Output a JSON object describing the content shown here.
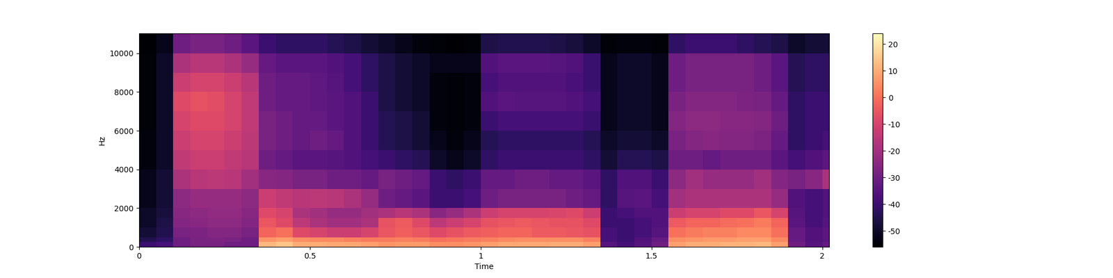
{
  "chart_data": {
    "type": "heatmap",
    "x_label": "Time",
    "y_label": "Hz",
    "color": "magma",
    "x_edges": [
      0,
      0.05,
      0.1,
      0.15,
      0.2,
      0.25,
      0.3,
      0.35,
      0.4,
      0.45,
      0.5,
      0.55,
      0.6,
      0.65,
      0.7,
      0.75,
      0.8,
      0.85,
      0.9,
      0.95,
      1.0,
      1.05,
      1.1,
      1.15,
      1.2,
      1.25,
      1.3,
      1.35,
      1.4,
      1.45,
      1.5,
      1.55,
      1.6,
      1.65,
      1.7,
      1.75,
      1.8,
      1.85,
      1.9,
      1.95,
      2.0,
      2.02
    ],
    "y_edges": [
      0,
      250,
      500,
      1000,
      1500,
      2000,
      3000,
      4000,
      5000,
      6000,
      7000,
      8000,
      9000,
      10000,
      11025
    ],
    "cells": [
      [
        -40,
        -38,
        -30,
        -28,
        -28,
        -30,
        -30,
        12,
        14,
        10,
        10,
        9,
        9,
        8,
        6,
        7,
        7,
        5,
        5,
        6,
        8,
        9,
        9,
        9,
        10,
        10,
        8,
        -35,
        -38,
        -35,
        -30,
        8,
        10,
        10,
        11,
        11,
        12,
        8,
        -30,
        -35,
        -32
      ],
      [
        -45,
        -42,
        -30,
        -28,
        -27,
        -28,
        -30,
        6,
        8,
        5,
        4,
        4,
        3,
        2,
        2,
        3,
        2,
        0,
        1,
        2,
        3,
        4,
        5,
        5,
        5,
        5,
        3,
        -38,
        -40,
        -36,
        -32,
        5,
        6,
        7,
        7,
        8,
        8,
        4,
        -32,
        -36,
        -34
      ],
      [
        -48,
        -45,
        -28,
        -27,
        -26,
        -26,
        -28,
        -2,
        0,
        -8,
        -10,
        -12,
        -12,
        -10,
        -5,
        -3,
        -5,
        -8,
        -6,
        -4,
        -3,
        -2,
        -2,
        -4,
        -4,
        -5,
        -6,
        -38,
        -40,
        -38,
        -35,
        0,
        2,
        3,
        3,
        4,
        4,
        0,
        -32,
        -36,
        -34
      ],
      [
        -50,
        -46,
        -26,
        -25,
        -24,
        -24,
        -26,
        -5,
        -8,
        -15,
        -18,
        -20,
        -20,
        -18,
        -6,
        -4,
        -8,
        -15,
        -12,
        -10,
        -6,
        -5,
        -4,
        -5,
        -6,
        -6,
        -8,
        -40,
        -40,
        -38,
        -36,
        -4,
        -2,
        -2,
        -1,
        0,
        2,
        -2,
        -34,
        -38,
        -35
      ],
      [
        -50,
        -47,
        -25,
        -24,
        -23,
        -23,
        -25,
        -8,
        -10,
        -18,
        -20,
        -22,
        -22,
        -20,
        -18,
        -16,
        -18,
        -25,
        -22,
        -18,
        -12,
        -10,
        -10,
        -10,
        -9,
        -8,
        -12,
        -40,
        -38,
        -36,
        -36,
        -12,
        -10,
        -10,
        -8,
        -8,
        -5,
        -10,
        -35,
        -38,
        -36
      ],
      [
        -52,
        -48,
        -24,
        -22,
        -22,
        -22,
        -24,
        -12,
        -14,
        -16,
        -15,
        -16,
        -18,
        -22,
        -30,
        -32,
        -34,
        -40,
        -40,
        -38,
        -30,
        -28,
        -28,
        -28,
        -28,
        -30,
        -32,
        -42,
        -35,
        -34,
        -38,
        -20,
        -18,
        -18,
        -18,
        -18,
        -18,
        -22,
        -36,
        -38,
        -36
      ],
      [
        -52,
        -48,
        -18,
        -16,
        -15,
        -16,
        -20,
        -25,
        -26,
        -28,
        -28,
        -30,
        -30,
        -32,
        -28,
        -30,
        -32,
        -40,
        -42,
        -40,
        -32,
        -32,
        -30,
        -30,
        -32,
        -32,
        -34,
        -42,
        -36,
        -36,
        -40,
        -24,
        -20,
        -22,
        -22,
        -22,
        -20,
        -26,
        -28,
        -25,
        -18
      ],
      [
        -54,
        -50,
        -14,
        -12,
        -12,
        -14,
        -16,
        -30,
        -32,
        -34,
        -34,
        -35,
        -36,
        -38,
        -40,
        -42,
        -44,
        -50,
        -52,
        -50,
        -42,
        -40,
        -40,
        -40,
        -40,
        -40,
        -42,
        -48,
        -44,
        -44,
        -46,
        -30,
        -30,
        -32,
        -30,
        -30,
        -30,
        -34,
        -38,
        -36,
        -34
      ],
      [
        -54,
        -50,
        -12,
        -10,
        -10,
        -12,
        -15,
        -28,
        -30,
        -32,
        -30,
        -32,
        -36,
        -40,
        -44,
        -46,
        -48,
        -52,
        -54,
        -52,
        -44,
        -42,
        -42,
        -42,
        -42,
        -42,
        -44,
        -50,
        -48,
        -48,
        -50,
        -28,
        -26,
        -25,
        -26,
        -26,
        -27,
        -32,
        -42,
        -40,
        -38
      ],
      [
        -55,
        -50,
        -10,
        -8,
        -8,
        -10,
        -14,
        -28,
        -30,
        -32,
        -32,
        -34,
        -36,
        -40,
        -44,
        -46,
        -48,
        -54,
        -55,
        -54,
        -40,
        -38,
        -38,
        -38,
        -38,
        -38,
        -40,
        -52,
        -50,
        -50,
        -52,
        -26,
        -24,
        -24,
        -25,
        -25,
        -26,
        -30,
        -42,
        -40,
        -40
      ],
      [
        -55,
        -50,
        -8,
        -6,
        -7,
        -10,
        -14,
        -30,
        -32,
        -32,
        -33,
        -34,
        -36,
        -40,
        -46,
        -48,
        -50,
        -54,
        -55,
        -54,
        -36,
        -34,
        -35,
        -35,
        -35,
        -36,
        -38,
        -52,
        -50,
        -50,
        -52,
        -28,
        -26,
        -26,
        -26,
        -27,
        -28,
        -32,
        -42,
        -40,
        -40
      ],
      [
        -55,
        -50,
        -12,
        -10,
        -10,
        -12,
        -16,
        -30,
        -32,
        -32,
        -33,
        -35,
        -38,
        -42,
        -46,
        -48,
        -50,
        -54,
        -55,
        -54,
        -38,
        -36,
        -36,
        -36,
        -36,
        -37,
        -40,
        -52,
        -50,
        -50,
        -52,
        -30,
        -28,
        -28,
        -28,
        -28,
        -30,
        -34,
        -44,
        -42,
        -42
      ],
      [
        -55,
        -50,
        -18,
        -16,
        -16,
        -18,
        -22,
        -32,
        -34,
        -34,
        -34,
        -36,
        -38,
        -42,
        -46,
        -48,
        -50,
        -52,
        -52,
        -52,
        -36,
        -34,
        -34,
        -34,
        -35,
        -36,
        -40,
        -52,
        -50,
        -50,
        -52,
        -30,
        -28,
        -28,
        -28,
        -28,
        -30,
        -34,
        -44,
        -42,
        -42
      ],
      [
        -56,
        -52,
        -30,
        -28,
        -28,
        -30,
        -34,
        -40,
        -42,
        -42,
        -42,
        -44,
        -46,
        -48,
        -50,
        -52,
        -54,
        -55,
        -56,
        -55,
        -46,
        -45,
        -45,
        -45,
        -46,
        -47,
        -50,
        -55,
        -54,
        -54,
        -55,
        -42,
        -40,
        -40,
        -40,
        -42,
        -44,
        -46,
        -50,
        -48,
        -48
      ]
    ],
    "color_range": [
      -56,
      24
    ],
    "color_ticks": [
      -50,
      -40,
      -30,
      -20,
      -10,
      0,
      10,
      20
    ],
    "xlim": [
      0,
      2.02
    ],
    "xticks": [
      0,
      0.5,
      1,
      1.5,
      2
    ],
    "ylim": [
      0,
      11025
    ],
    "yticks": [
      0,
      2000,
      4000,
      6000,
      8000,
      10000
    ]
  }
}
